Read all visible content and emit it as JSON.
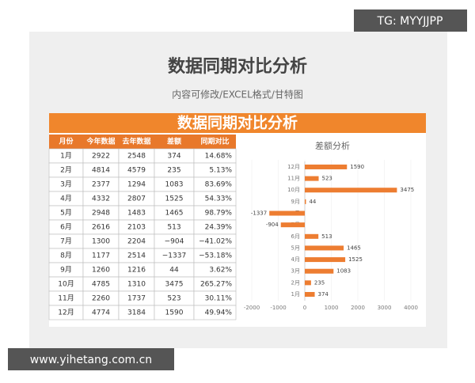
{
  "header": {
    "title": "数据同期对比分析",
    "subtitle": "内容可修改/EXCEL格式/甘特图",
    "banner": "数据同期对比分析"
  },
  "table": {
    "headers": [
      "月份",
      "今年数据",
      "去年数据",
      "差额",
      "同期对比"
    ],
    "rows": [
      [
        "1月",
        "2922",
        "2548",
        "374",
        "14.68%"
      ],
      [
        "2月",
        "4814",
        "4579",
        "235",
        "5.13%"
      ],
      [
        "3月",
        "2377",
        "1294",
        "1083",
        "83.69%"
      ],
      [
        "4月",
        "4332",
        "2807",
        "1525",
        "54.33%"
      ],
      [
        "5月",
        "2948",
        "1483",
        "1465",
        "98.79%"
      ],
      [
        "6月",
        "2616",
        "2103",
        "513",
        "24.39%"
      ],
      [
        "7月",
        "1300",
        "2204",
        "−904",
        "−41.02%"
      ],
      [
        "8月",
        "1177",
        "2514",
        "−1337",
        "−53.18%"
      ],
      [
        "9月",
        "1260",
        "1216",
        "44",
        "3.62%"
      ],
      [
        "10月",
        "4785",
        "1310",
        "3475",
        "265.27%"
      ],
      [
        "11月",
        "2260",
        "1737",
        "523",
        "30.11%"
      ],
      [
        "12月",
        "4774",
        "3184",
        "1590",
        "49.94%"
      ]
    ]
  },
  "chart_data": {
    "type": "hbar",
    "title": "差额分析",
    "categories": [
      "1月",
      "2月",
      "3月",
      "4月",
      "5月",
      "6月",
      "7月",
      "8月",
      "9月",
      "10月",
      "11月",
      "12月"
    ],
    "values": [
      374,
      235,
      1083,
      1525,
      1465,
      513,
      -904,
      -1337,
      44,
      3475,
      523,
      1590
    ],
    "color": "#ed7d31",
    "xlim": [
      -2000,
      4000
    ],
    "xticks": [
      -2000,
      -1000,
      0,
      1000,
      2000,
      3000,
      4000
    ],
    "grid": true
  },
  "watermarks": {
    "top": "TG: MYYJJPP",
    "bottom": "www.yihetang.com.cn"
  }
}
